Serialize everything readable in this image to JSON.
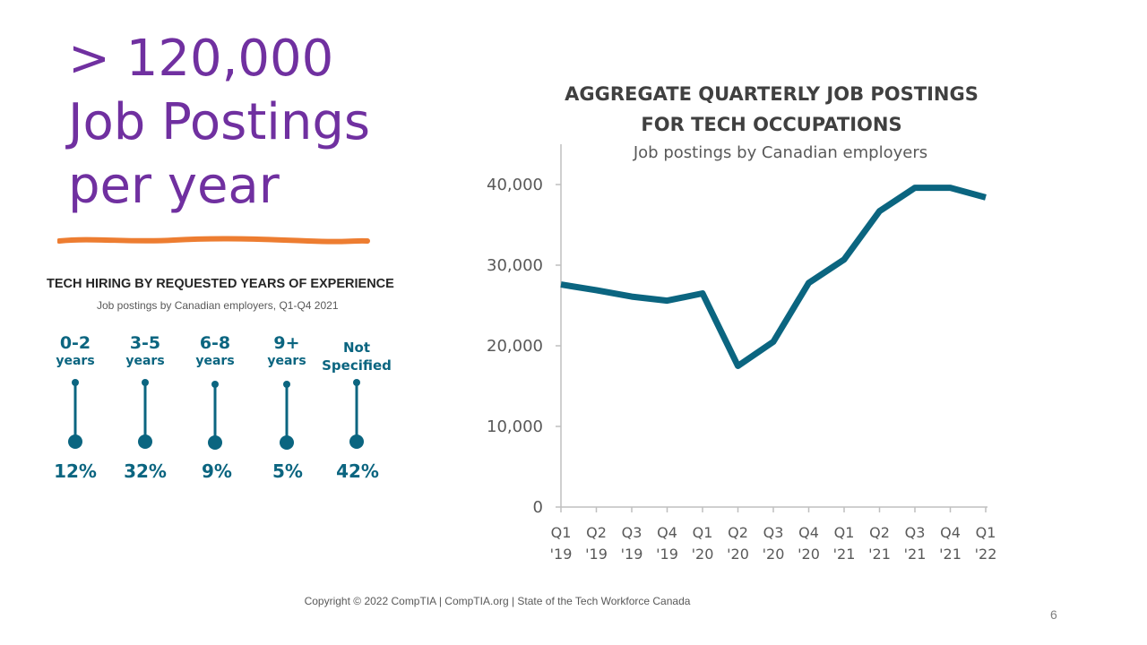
{
  "headline": {
    "line1": "> 120,000",
    "line2": "Job Postings",
    "line3": "per year",
    "color": "#7030a0",
    "underline_color": "#ed7d31"
  },
  "experience": {
    "title": "TECH HIRING BY REQUESTED YEARS OF EXPERIENCE",
    "subtitle": "Job postings by Canadian employers, Q1-Q4 2021",
    "color": "#0b6580",
    "items": [
      {
        "label_top": "0-2",
        "label_bottom": "years",
        "percent": "12%"
      },
      {
        "label_top": "3-5",
        "label_bottom": "years",
        "percent": "32%"
      },
      {
        "label_top": "6-8",
        "label_bottom": "years",
        "percent": "9%"
      },
      {
        "label_top": "9+",
        "label_bottom": "years",
        "percent": "5%"
      },
      {
        "label_top": "Not",
        "label_bottom": "Specified",
        "percent": "42%"
      }
    ]
  },
  "chart_data": {
    "type": "line",
    "title_line1": "AGGREGATE QUARTERLY JOB POSTINGS",
    "title_line2": "FOR TECH OCCUPATIONS",
    "subtitle": "Job postings by Canadian employers",
    "categories": [
      [
        "Q1",
        "'19"
      ],
      [
        "Q2",
        "'19"
      ],
      [
        "Q3",
        "'19"
      ],
      [
        "Q4",
        "'19"
      ],
      [
        "Q1",
        "'20"
      ],
      [
        "Q2",
        "'20"
      ],
      [
        "Q3",
        "'20"
      ],
      [
        "Q4",
        "'20"
      ],
      [
        "Q1",
        "'21"
      ],
      [
        "Q2",
        "'21"
      ],
      [
        "Q3",
        "'21"
      ],
      [
        "Q4",
        "'21"
      ],
      [
        "Q1",
        "'22"
      ]
    ],
    "series": [
      {
        "values": [
          27600,
          26900,
          26100,
          25600,
          26500,
          17500,
          20500,
          27800,
          30700,
          36700,
          39600,
          39600,
          38400
        ]
      }
    ],
    "ylim": [
      0,
      45000
    ],
    "yticks": [
      0,
      10000,
      20000,
      30000,
      40000
    ],
    "ytick_labels": [
      "0",
      "10,000",
      "20,000",
      "30,000",
      "40,000"
    ],
    "line_color": "#0b6580",
    "grid": false
  },
  "footer": {
    "copyright": "Copyright © 2022 CompTIA | CompTIA.org | State of the Tech Workforce Canada",
    "page_number": "6"
  }
}
